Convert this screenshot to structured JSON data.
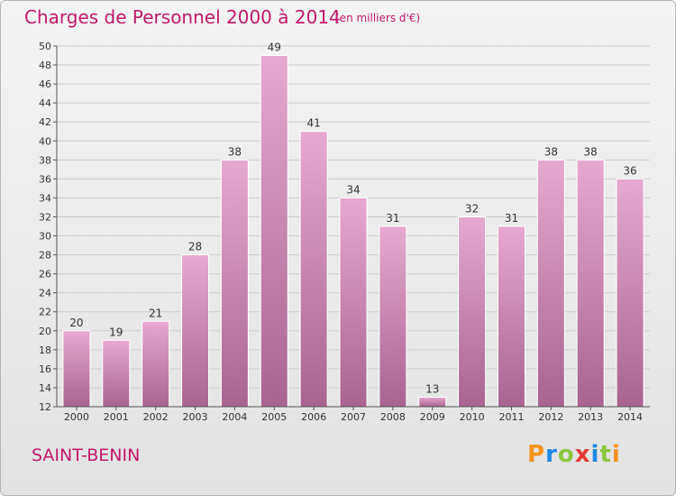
{
  "header": {
    "title": "Charges de Personnel 2000 à 2014",
    "subtitle": "(en milliers d'€)"
  },
  "footer": {
    "commune": "SAINT-BENIN",
    "logo": {
      "letters": [
        "P",
        "r",
        "o",
        "x",
        "i",
        "t",
        "i"
      ],
      "colors": [
        "#f7941d",
        "#1e88e5",
        "#8cc63f",
        "#e53935",
        "#1e88e5",
        "#8cc63f",
        "#f7941d"
      ]
    }
  },
  "colors": {
    "bar_top": "#e6a9cf",
    "bar_bottom": "#a8648f",
    "title": "#c2186b",
    "grid": "#cccccc",
    "axis": "#555555"
  },
  "chart_data": {
    "type": "bar",
    "categories": [
      "2000",
      "2001",
      "2002",
      "2003",
      "2004",
      "2005",
      "2006",
      "2007",
      "2008",
      "2009",
      "2010",
      "2011",
      "2012",
      "2013",
      "2014"
    ],
    "values": [
      20,
      19,
      21,
      28,
      38,
      49,
      41,
      34,
      31,
      13,
      32,
      31,
      38,
      38,
      36
    ],
    "title": "Charges de Personnel 2000 à 2014",
    "xlabel": "",
    "ylabel": "",
    "ylim": [
      12,
      50
    ],
    "yticks": [
      12,
      14,
      16,
      18,
      20,
      22,
      24,
      26,
      28,
      30,
      32,
      34,
      36,
      38,
      40,
      42,
      44,
      46,
      48,
      50
    ],
    "grid": true,
    "data_labels": true
  }
}
